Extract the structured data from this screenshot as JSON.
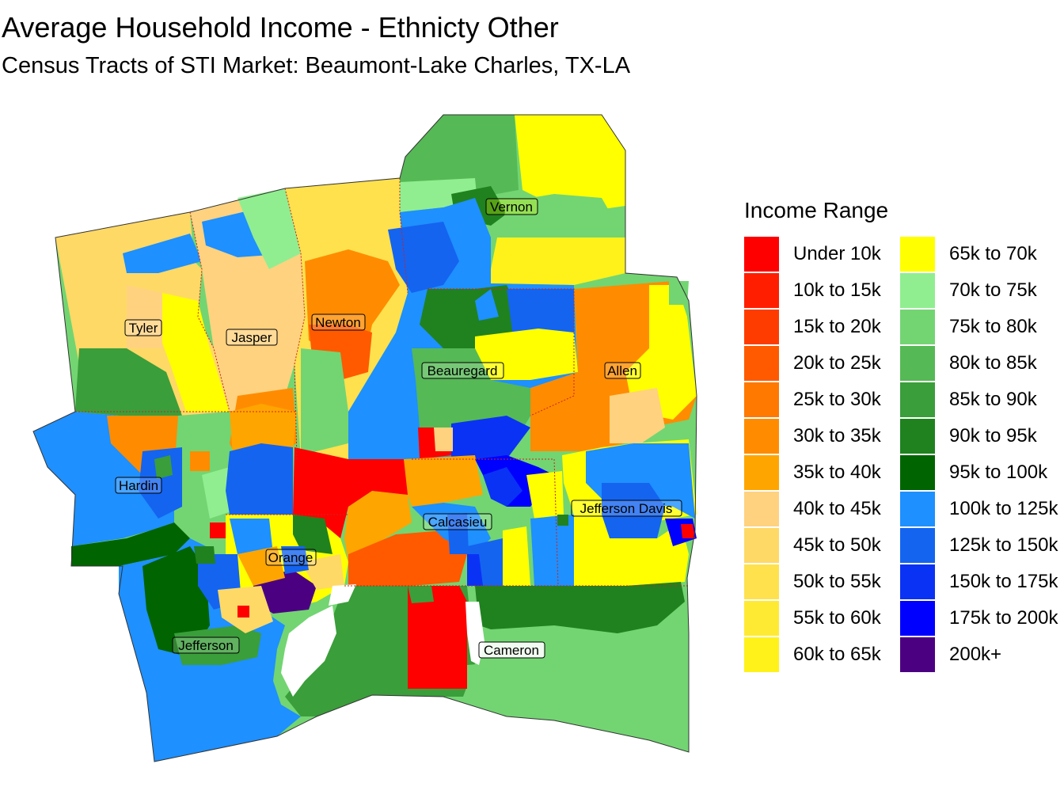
{
  "title": "Average Household Income - Ethnicty Other",
  "subtitle": "Census Tracts of STI Market: Beaumont-Lake Charles, TX-LA",
  "legend": {
    "title": "Income Range",
    "items": [
      {
        "label": "Under 10k",
        "color": "#FF0000"
      },
      {
        "label": "10k to 15k",
        "color": "#FF1E00"
      },
      {
        "label": "15k to 20k",
        "color": "#FF3C00"
      },
      {
        "label": "20k to 25k",
        "color": "#FF5A00"
      },
      {
        "label": "25k to 30k",
        "color": "#FF7800"
      },
      {
        "label": "30k to 35k",
        "color": "#FF8C00"
      },
      {
        "label": "35k to 40k",
        "color": "#FFA500"
      },
      {
        "label": "40k to 45k",
        "color": "#FFD27F"
      },
      {
        "label": "45k to 50k",
        "color": "#FFD966"
      },
      {
        "label": "50k to 55k",
        "color": "#FFE14D"
      },
      {
        "label": "55k to 60k",
        "color": "#FFEA33"
      },
      {
        "label": "60k to 65k",
        "color": "#FFF21A"
      },
      {
        "label": "65k to 70k",
        "color": "#FFFF00"
      },
      {
        "label": "70k to 75k",
        "color": "#90EE90"
      },
      {
        "label": "75k to 80k",
        "color": "#72D572"
      },
      {
        "label": "80k to 85k",
        "color": "#55B955"
      },
      {
        "label": "85k to 90k",
        "color": "#3A9E3A"
      },
      {
        "label": "90k to 95k",
        "color": "#1F821F"
      },
      {
        "label": "95k to 100k",
        "color": "#006400"
      },
      {
        "label": "100k to 125k",
        "color": "#1E90FF"
      },
      {
        "label": "125k to 150k",
        "color": "#1464F0"
      },
      {
        "label": "150k to 175k",
        "color": "#0A32F5"
      },
      {
        "label": "175k to 200k",
        "color": "#0000FF"
      },
      {
        "label": "200k+",
        "color": "#4B0082"
      }
    ]
  },
  "counties": [
    {
      "name": "Vernon"
    },
    {
      "name": "Tyler"
    },
    {
      "name": "Jasper"
    },
    {
      "name": "Newton"
    },
    {
      "name": "Beauregard"
    },
    {
      "name": "Allen"
    },
    {
      "name": "Hardin"
    },
    {
      "name": "Calcasieu"
    },
    {
      "name": "Jefferson Davis"
    },
    {
      "name": "Orange"
    },
    {
      "name": "Jefferson"
    },
    {
      "name": "Cameron"
    }
  ]
}
